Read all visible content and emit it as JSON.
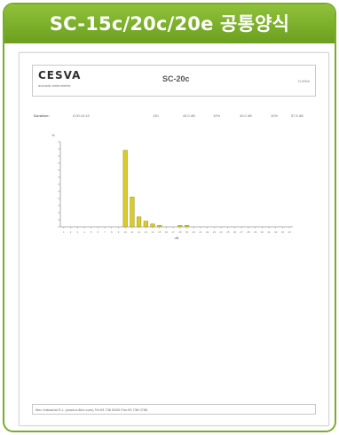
{
  "header": {
    "title": "SC-15c/20c/20e 공통양식"
  },
  "document": {
    "logo": "CESVA",
    "logo_sub": "acoustic instruments",
    "title": "SC-20c",
    "tag": "D.0004",
    "info": {
      "label": "Duration:",
      "value1": "0:00:10:10",
      "v2": "13h",
      "v3": "45.0 dB",
      "v4": "10%",
      "v5": "40.0 dB",
      "v6": "10%",
      "v7": "57.5 dB"
    },
    "footer": "Iltec Industrial S.L. (www.e-iltec.com) Tel:93 736 5000 Fax:93 736 0756"
  },
  "chart_data": {
    "type": "bar",
    "ylabel": "%",
    "xlabel": "dB",
    "ylim": [
      0,
      60
    ],
    "categories": [
      "1",
      "2",
      "3",
      "4",
      "5",
      "6",
      "7",
      "8",
      "9",
      "10",
      "11",
      "12",
      "13",
      "14",
      "15",
      "16",
      "17",
      "18",
      "19",
      "20",
      "21",
      "22",
      "23",
      "24",
      "25",
      "26",
      "27",
      "28",
      "29",
      "30",
      "31",
      "32",
      "33",
      "34"
    ],
    "values": [
      0,
      0,
      0,
      0,
      0,
      0,
      0,
      0,
      0,
      54,
      21,
      7,
      4,
      2,
      1,
      0,
      0,
      1,
      1,
      0,
      0,
      0,
      0,
      0,
      0,
      0,
      0,
      0,
      0,
      0,
      0,
      0,
      0,
      0
    ],
    "grid": false,
    "bar_color": "#d8cb2a"
  }
}
